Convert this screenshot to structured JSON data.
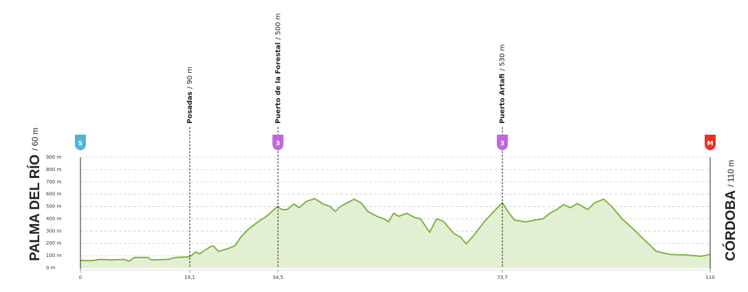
{
  "chart_data": {
    "type": "area",
    "start": {
      "name": "PALMA DEL RÍO",
      "elevation": "/ 60 m"
    },
    "finish": {
      "name": "CÓRDOBA",
      "elevation": "/ 110 m"
    },
    "x": [
      0,
      2.2,
      3.4,
      5.2,
      7.6,
      8.5,
      9.4,
      11.8,
      12.4,
      15.4,
      16.6,
      19.0,
      20.2,
      20.8,
      22.6,
      23.2,
      24.1,
      25.6,
      27.0,
      28.0,
      29.2,
      31.0,
      32.5,
      34.4,
      35.2,
      36.1,
      37.3,
      38.2,
      39.4,
      40.9,
      42.4,
      43.6,
      44.5,
      45.4,
      46.6,
      47.8,
      49.0,
      50.2,
      51.8,
      53.0,
      53.8,
      54.7,
      55.6,
      57.0,
      58.4,
      59.4,
      61.0,
      62.2,
      63.4,
      65.2,
      66.4,
      67.4,
      68.8,
      70.6,
      72.2,
      73.7,
      74.8,
      75.8,
      77.8,
      79.4,
      80.8,
      82.0,
      83.2,
      84.4,
      85.6,
      86.8,
      88.6,
      89.8,
      91.4,
      92.8,
      94.6,
      96.4,
      98.8,
      100.6,
      103.0,
      106.0,
      108.4,
      110
    ],
    "values": [
      60,
      60,
      70,
      65,
      70,
      55,
      85,
      85,
      65,
      70,
      85,
      90,
      130,
      115,
      170,
      180,
      135,
      155,
      180,
      250,
      310,
      375,
      420,
      500,
      475,
      475,
      520,
      490,
      540,
      565,
      520,
      500,
      460,
      500,
      530,
      560,
      530,
      460,
      420,
      400,
      375,
      445,
      420,
      445,
      410,
      400,
      290,
      400,
      380,
      280,
      250,
      195,
      270,
      380,
      460,
      530,
      450,
      390,
      375,
      390,
      400,
      445,
      475,
      515,
      490,
      525,
      475,
      530,
      560,
      500,
      400,
      325,
      215,
      135,
      110,
      105,
      95,
      110
    ],
    "color": "#7cb342",
    "fill": "#e3efd3",
    "xlim": [
      0,
      110
    ],
    "xticks": [
      0,
      {
        "value": 19.1,
        "label": "19,1"
      },
      {
        "value": 34.5,
        "label": "34,5"
      },
      {
        "value": 73.7,
        "label": "73,7"
      },
      110
    ],
    "ylim": [
      0,
      900
    ],
    "yticks": [
      {
        "value": 0,
        "label": "0 m"
      },
      {
        "value": 100,
        "label": "100 m"
      },
      {
        "value": 200,
        "label": "200 m"
      },
      {
        "value": 300,
        "label": "300 m"
      },
      {
        "value": 400,
        "label": "400 m"
      },
      {
        "value": 500,
        "label": "500 m"
      },
      {
        "value": 600,
        "label": "600 m"
      },
      {
        "value": 700,
        "label": "700 m"
      },
      {
        "value": 800,
        "label": "800 m"
      },
      {
        "value": 900,
        "label": "900 m"
      }
    ],
    "grid": true,
    "waypoints": [
      {
        "km": 19.1,
        "name": "Posadas",
        "elevation": "/ 90 m"
      },
      {
        "km": 34.5,
        "name": "Puerto de la Forestal",
        "elevation": "/ 500 m"
      },
      {
        "km": 73.7,
        "name": "Puerto Artafi",
        "elevation": "/ 530 m"
      }
    ],
    "badges": [
      {
        "km": 0,
        "label": "S",
        "color": "#4fb3d9"
      },
      {
        "km": 34.5,
        "label": "3",
        "color": "#c067e0"
      },
      {
        "km": 73.7,
        "label": "3",
        "color": "#c067e0"
      },
      {
        "km": 110,
        "label": "M",
        "color": "#ee3124"
      }
    ]
  }
}
